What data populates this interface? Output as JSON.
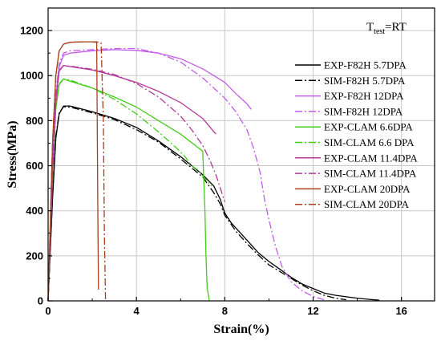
{
  "chart_data": {
    "type": "line",
    "xlabel": "Strain(%)",
    "ylabel": "Stress(MPa)",
    "xlim": [
      0,
      17.5
    ],
    "ylim": [
      0,
      1300
    ],
    "x_ticks": [
      0,
      4,
      8,
      12,
      16
    ],
    "y_ticks": [
      0,
      200,
      400,
      600,
      800,
      1000,
      1200
    ],
    "x_tick_labels": [
      "0",
      "4",
      "8",
      "12",
      "16"
    ],
    "y_tick_labels": [
      "0",
      "200",
      "400",
      "600",
      "800",
      "1000",
      "1200"
    ],
    "grid": true,
    "legend_position": "right",
    "annotation": {
      "main": "T",
      "sub": "test",
      "suffix": "=RT"
    },
    "series": [
      {
        "name": "EXP-F82H 5.7DPA",
        "color": "#000000",
        "dash": "solid",
        "points": [
          [
            0,
            0
          ],
          [
            0.2,
            450
          ],
          [
            0.35,
            720
          ],
          [
            0.5,
            830
          ],
          [
            0.7,
            865
          ],
          [
            1.0,
            865
          ],
          [
            2,
            840
          ],
          [
            3,
            810
          ],
          [
            4,
            770
          ],
          [
            5,
            710
          ],
          [
            6,
            640
          ],
          [
            7,
            560
          ],
          [
            7.5,
            510
          ],
          [
            7.8,
            450
          ],
          [
            8.0,
            390
          ],
          [
            8.3,
            345
          ],
          [
            9,
            270
          ],
          [
            9.5,
            215
          ],
          [
            10,
            175
          ],
          [
            10.5,
            140
          ],
          [
            11,
            105
          ],
          [
            11.5,
            75
          ],
          [
            12,
            55
          ],
          [
            12.5,
            35
          ],
          [
            13,
            25
          ],
          [
            13.5,
            18
          ],
          [
            14,
            12
          ],
          [
            14.5,
            7
          ],
          [
            15,
            3
          ]
        ]
      },
      {
        "name": "SIM-F82H 5.7DPA",
        "color": "#000000",
        "dash": "dashdot",
        "points": [
          [
            0,
            0
          ],
          [
            0.2,
            460
          ],
          [
            0.35,
            730
          ],
          [
            0.5,
            835
          ],
          [
            0.7,
            862
          ],
          [
            1.0,
            860
          ],
          [
            2,
            835
          ],
          [
            3,
            805
          ],
          [
            4,
            760
          ],
          [
            5,
            705
          ],
          [
            6,
            630
          ],
          [
            7,
            550
          ],
          [
            7.5,
            480
          ],
          [
            7.8,
            430
          ],
          [
            8.0,
            380
          ],
          [
            8.5,
            310
          ],
          [
            9,
            255
          ],
          [
            9.5,
            205
          ],
          [
            10,
            160
          ],
          [
            10.5,
            130
          ],
          [
            11,
            100
          ],
          [
            11.5,
            70
          ],
          [
            12,
            45
          ],
          [
            12.5,
            25
          ],
          [
            13,
            12
          ],
          [
            13.5,
            5
          ]
        ]
      },
      {
        "name": "EXP-F82H 12DPA",
        "color": "#c25be8",
        "dash": "solid",
        "points": [
          [
            0,
            0
          ],
          [
            0.2,
            600
          ],
          [
            0.35,
            900
          ],
          [
            0.5,
            1040
          ],
          [
            0.7,
            1090
          ],
          [
            1.0,
            1100
          ],
          [
            2,
            1110
          ],
          [
            3,
            1115
          ],
          [
            4,
            1112
          ],
          [
            5,
            1100
          ],
          [
            6,
            1075
          ],
          [
            7,
            1030
          ],
          [
            8,
            970
          ],
          [
            8.5,
            920
          ],
          [
            9,
            875
          ],
          [
            9.2,
            850
          ]
        ]
      },
      {
        "name": "SIM-F82H 12DPA",
        "color": "#c25be8",
        "dash": "dashdot",
        "points": [
          [
            0,
            0
          ],
          [
            0.2,
            600
          ],
          [
            0.35,
            920
          ],
          [
            0.5,
            1055
          ],
          [
            0.7,
            1100
          ],
          [
            1.0,
            1110
          ],
          [
            2,
            1115
          ],
          [
            3,
            1120
          ],
          [
            4,
            1120
          ],
          [
            5,
            1100
          ],
          [
            6,
            1060
          ],
          [
            7,
            990
          ],
          [
            8,
            900
          ],
          [
            8.5,
            840
          ],
          [
            9,
            760
          ],
          [
            9.3,
            680
          ],
          [
            9.6,
            570
          ],
          [
            9.8,
            450
          ],
          [
            10,
            360
          ],
          [
            10.3,
            240
          ],
          [
            10.6,
            150
          ],
          [
            11,
            85
          ],
          [
            11.5,
            45
          ],
          [
            12,
            20
          ],
          [
            12.5,
            5
          ]
        ]
      },
      {
        "name": "EXP-CLAM 6.6DPA",
        "color": "#44cc1a",
        "dash": "solid",
        "points": [
          [
            0,
            0
          ],
          [
            0.2,
            550
          ],
          [
            0.35,
            850
          ],
          [
            0.5,
            960
          ],
          [
            0.7,
            985
          ],
          [
            1.0,
            975
          ],
          [
            2,
            945
          ],
          [
            3,
            905
          ],
          [
            4,
            860
          ],
          [
            5,
            800
          ],
          [
            6,
            740
          ],
          [
            6.8,
            680
          ],
          [
            7.0,
            665
          ],
          [
            7.1,
            400
          ],
          [
            7.15,
            200
          ],
          [
            7.2,
            60
          ],
          [
            7.3,
            0
          ]
        ]
      },
      {
        "name": "SIM-CLAM 6.6 DPA",
        "color": "#44cc1a",
        "dash": "dashdot",
        "points": [
          [
            0,
            0
          ],
          [
            0.2,
            560
          ],
          [
            0.35,
            860
          ],
          [
            0.5,
            965
          ],
          [
            0.7,
            985
          ],
          [
            1.0,
            980
          ],
          [
            2,
            945
          ],
          [
            3,
            895
          ],
          [
            4,
            830
          ],
          [
            5,
            750
          ],
          [
            5.8,
            680
          ],
          [
            6.2,
            640
          ],
          [
            6.5,
            600
          ],
          [
            6.8,
            580
          ],
          [
            7.0,
            555
          ],
          [
            7.2,
            530
          ],
          [
            7.4,
            510
          ]
        ]
      },
      {
        "name": "EXP-CLAM 11.4DPA",
        "color": "#b2389a",
        "dash": "solid",
        "points": [
          [
            0,
            0
          ],
          [
            0.2,
            560
          ],
          [
            0.35,
            880
          ],
          [
            0.5,
            1020
          ],
          [
            0.7,
            1045
          ],
          [
            1.0,
            1040
          ],
          [
            2,
            1025
          ],
          [
            3,
            1000
          ],
          [
            4,
            970
          ],
          [
            5,
            930
          ],
          [
            6,
            880
          ],
          [
            7,
            810
          ],
          [
            7.6,
            740
          ]
        ]
      },
      {
        "name": "SIM-CLAM 11.4DPA",
        "color": "#b2389a",
        "dash": "dashdot",
        "points": [
          [
            0,
            0
          ],
          [
            0.2,
            580
          ],
          [
            0.35,
            890
          ],
          [
            0.5,
            1025
          ],
          [
            0.7,
            1045
          ],
          [
            1.0,
            1042
          ],
          [
            2,
            1028
          ],
          [
            3,
            1005
          ],
          [
            4,
            965
          ],
          [
            5,
            905
          ],
          [
            6,
            820
          ],
          [
            6.5,
            760
          ],
          [
            7,
            690
          ],
          [
            7.3,
            630
          ],
          [
            7.6,
            560
          ],
          [
            7.8,
            500
          ],
          [
            8,
            440
          ]
        ]
      },
      {
        "name": "EXP-CLAM 20DPA",
        "color": "#a8401c",
        "dash": "solid",
        "points": [
          [
            0,
            0
          ],
          [
            0.2,
            700
          ],
          [
            0.35,
            1000
          ],
          [
            0.5,
            1110
          ],
          [
            0.7,
            1140
          ],
          [
            1.0,
            1148
          ],
          [
            1.5,
            1150
          ],
          [
            2.0,
            1150
          ],
          [
            2.2,
            1148
          ],
          [
            2.25,
            400
          ],
          [
            2.28,
            50
          ]
        ]
      },
      {
        "name": "SIM-CLAM 20DPA",
        "color": "#a8401c",
        "dash": "dashdot",
        "points": [
          [
            0,
            0
          ],
          [
            0.2,
            700
          ],
          [
            0.35,
            1000
          ],
          [
            0.5,
            1110
          ],
          [
            0.7,
            1140
          ],
          [
            1.0,
            1148
          ],
          [
            1.5,
            1150
          ],
          [
            2.0,
            1150
          ],
          [
            2.2,
            1150
          ],
          [
            2.4,
            1145
          ],
          [
            2.5,
            800
          ],
          [
            2.55,
            300
          ],
          [
            2.6,
            0
          ]
        ]
      }
    ]
  }
}
